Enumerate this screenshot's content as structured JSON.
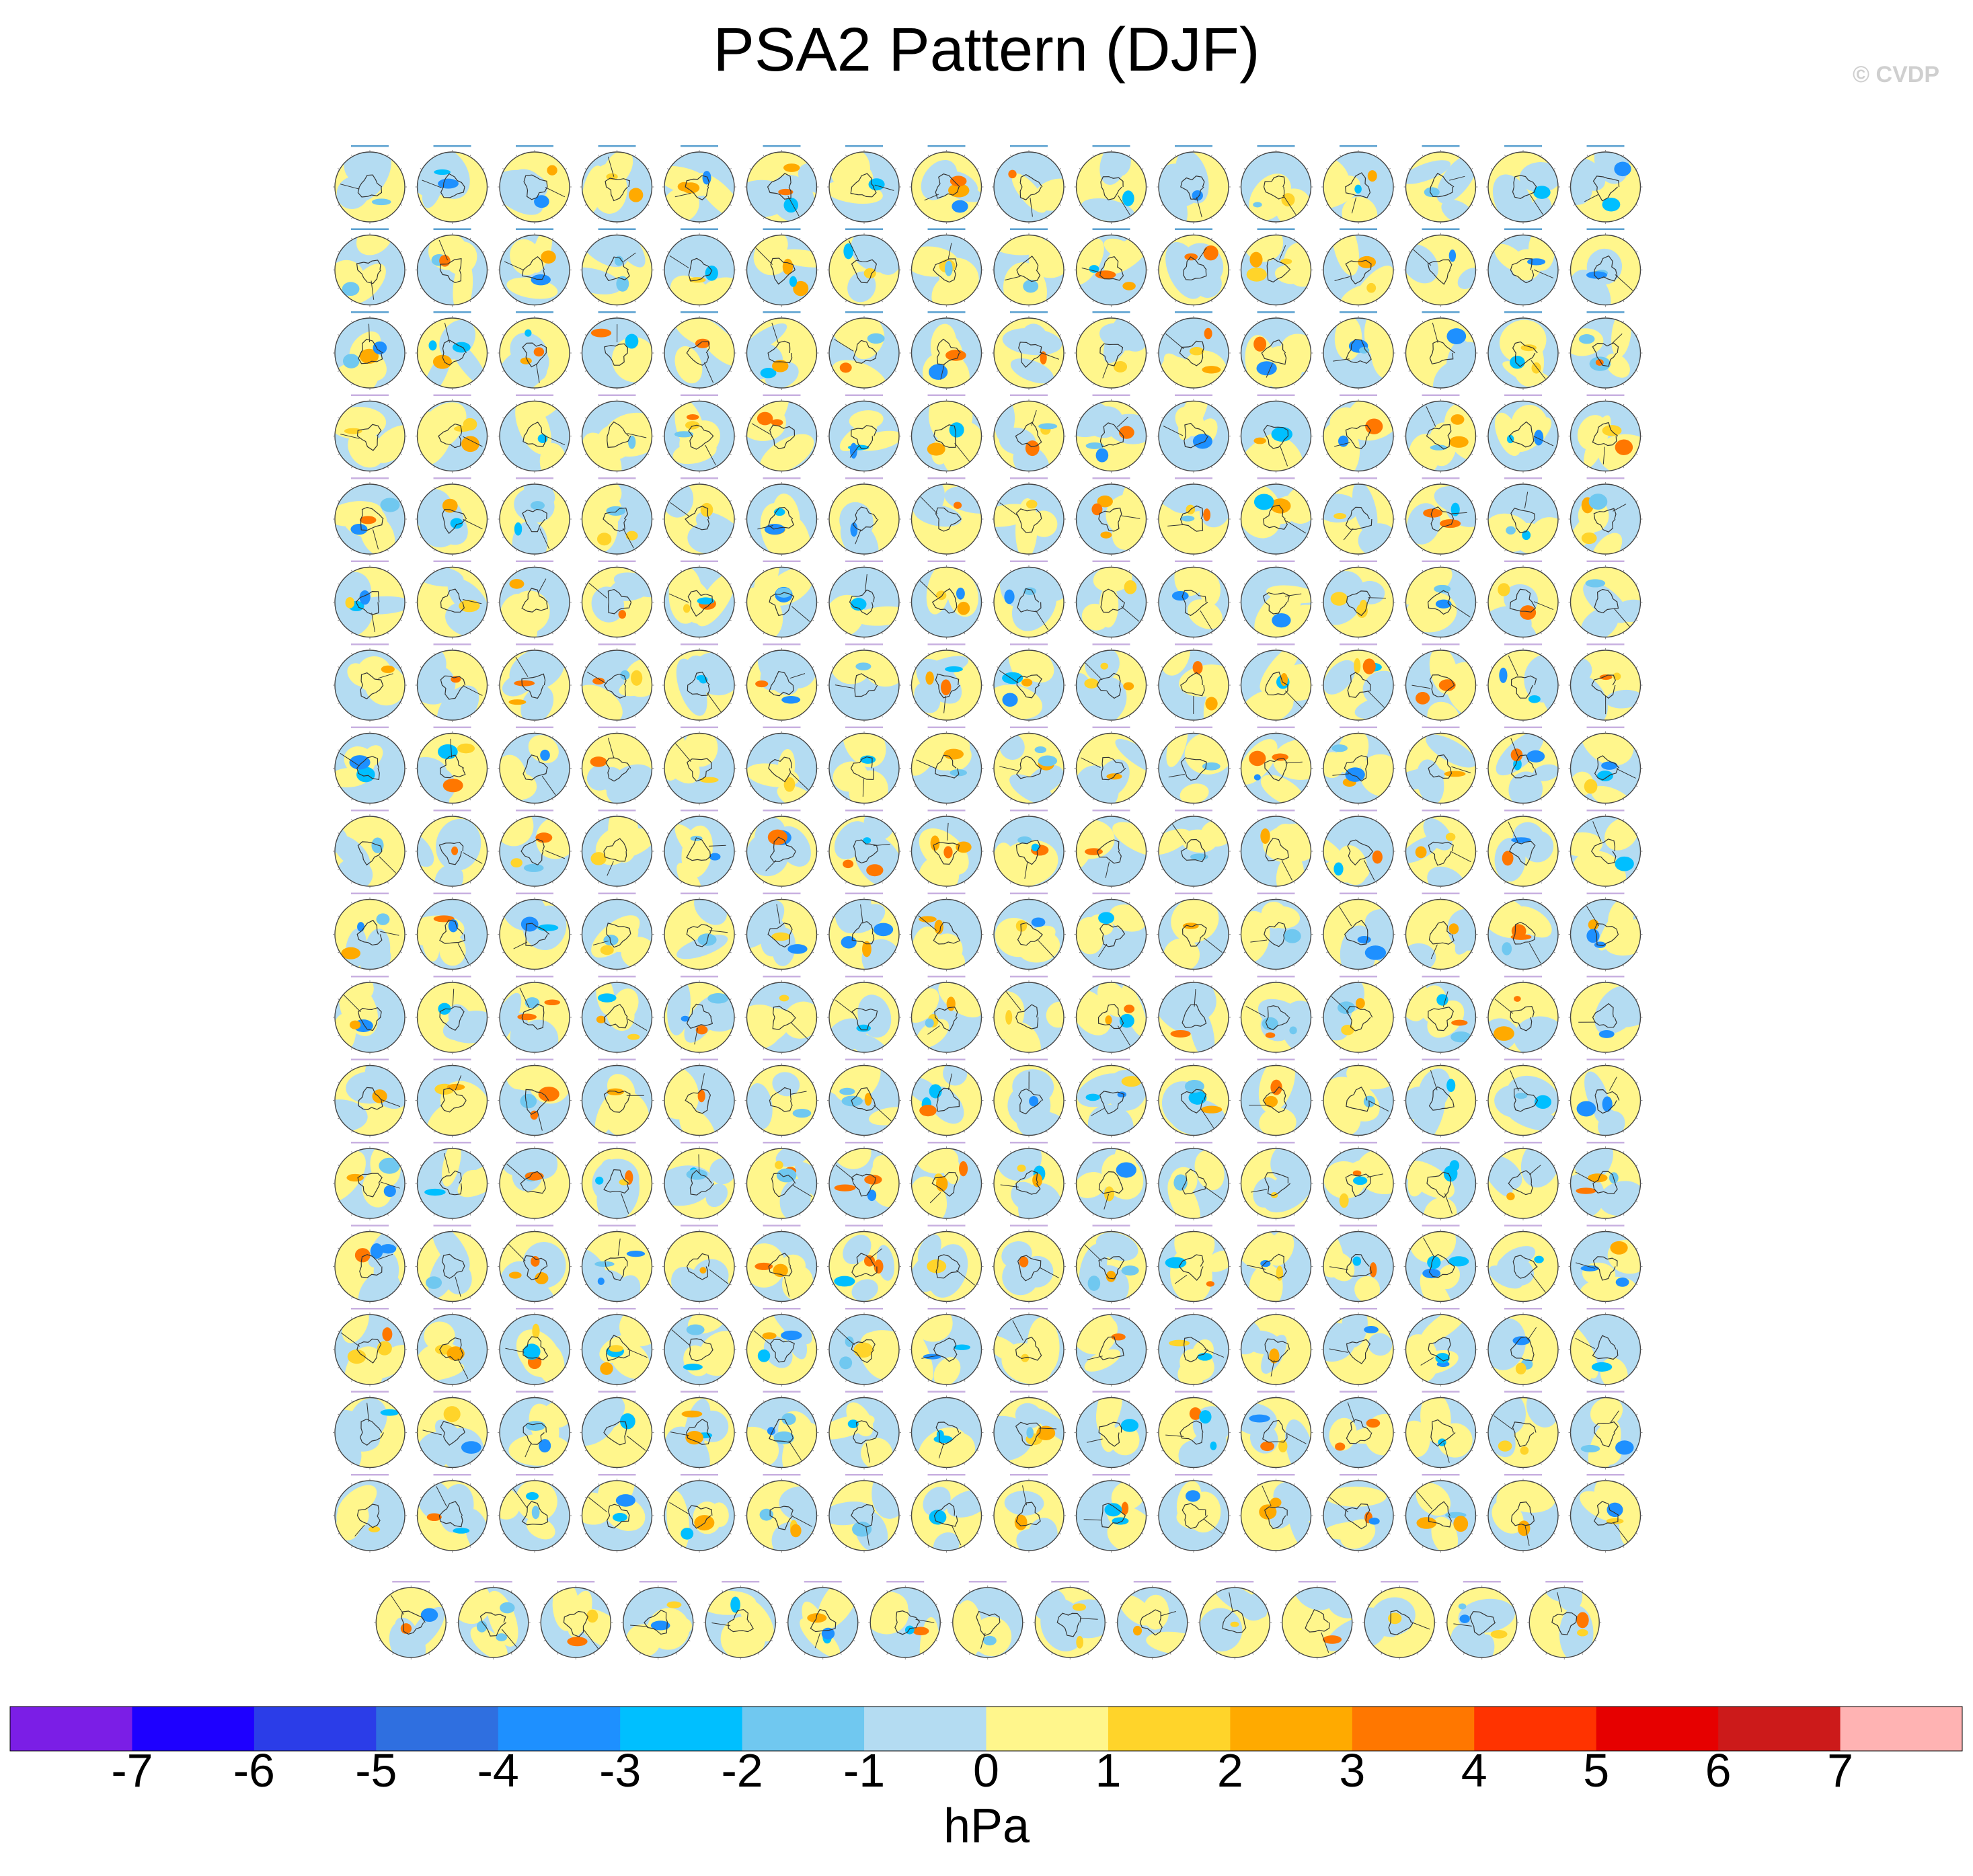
{
  "title": "PSA2 Pattern (DJF)",
  "credit": "© CVDP",
  "chart_data": {
    "type": "heatmap",
    "title": "PSA2 Pattern (DJF)",
    "projection": "south-polar-stereographic",
    "panel_grid": {
      "rows": 18,
      "full_row_columns": 16,
      "last_row_columns": 15,
      "total_panels": 287
    },
    "colorbar": {
      "unit": "hPa",
      "ticks": [
        -7,
        -6,
        -5,
        -4,
        -3,
        -2,
        -1,
        0,
        1,
        2,
        3,
        4,
        5,
        6,
        7
      ],
      "tick_labels": [
        "-7",
        "-6",
        "-5",
        "-4",
        "-3",
        "-2",
        "-1",
        "0",
        "1",
        "2",
        "3",
        "4",
        "5",
        "6",
        "7"
      ],
      "colors": [
        "#7b1ee6",
        "#1e00ff",
        "#2b3de8",
        "#2f6fe0",
        "#1e90ff",
        "#00bfff",
        "#70c8f0",
        "#b4dcf2",
        "#fff68c",
        "#ffd42a",
        "#ffaa00",
        "#ff7700",
        "#ff3300",
        "#e60000",
        "#cc1a1a",
        "#ffb3b3"
      ]
    }
  }
}
